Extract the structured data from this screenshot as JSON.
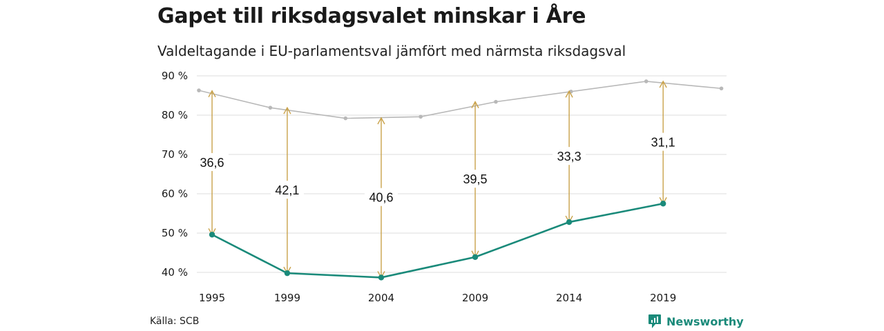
{
  "header": {
    "title": "Gapet till riksdagsvalet minskar i Åre",
    "subtitle": "Valdeltagande i EU-parlamentsval jämfört med närmsta riksdagsval"
  },
  "footer": {
    "source": "Källa: SCB",
    "brand": "Newsworthy"
  },
  "colors": {
    "eu_line": "#1a8a7a",
    "riksdag_line": "#b8b8b8",
    "gap_arrow": "#c9a24a",
    "grid": "#dcdcdc",
    "brand": "#1a8a7a"
  },
  "chart_data": {
    "type": "line",
    "title": "Gapet till riksdagsvalet minskar i Åre",
    "subtitle": "Valdeltagande i EU-parlamentsval jämfört med närmsta riksdagsval",
    "xlabel": "",
    "ylabel": "",
    "ylim": [
      37,
      90
    ],
    "y_ticks": [
      "90 %",
      "80 %",
      "70 %",
      "60 %",
      "50 %",
      "40 %"
    ],
    "y_tick_values": [
      90,
      80,
      70,
      60,
      50,
      40
    ],
    "x_ticks": [
      "1995",
      "1999",
      "2004",
      "2009",
      "2014",
      "2019"
    ],
    "x_tick_values": [
      1995,
      1999,
      2004,
      2009,
      2014,
      2019
    ],
    "xlim": [
      1994.3,
      2022.3
    ],
    "grid": true,
    "legend": "none",
    "series": [
      {
        "x": [
          1994.3,
          1998.1,
          2002.1,
          2006.1,
          2010.1,
          2014.1,
          2018.1,
          2022.1
        ],
        "y": [
          86.3,
          81.9,
          79.2,
          79.6,
          83.4,
          86.0,
          88.6,
          86.8
        ]
      },
      {
        "x": [
          1995,
          1999,
          2004,
          2009,
          2014,
          2019
        ],
        "y": [
          49.6,
          39.8,
          38.7,
          43.9,
          52.8,
          57.5
        ]
      }
    ],
    "gaps": [
      {
        "x": 1995,
        "from": 49.6,
        "to": 86.2,
        "label": "36,6"
      },
      {
        "x": 1999,
        "from": 39.8,
        "to": 81.9,
        "label": "42,1"
      },
      {
        "x": 2004,
        "from": 38.7,
        "to": 79.3,
        "label": "40,6"
      },
      {
        "x": 2009,
        "from": 43.9,
        "to": 83.4,
        "label": "39,5"
      },
      {
        "x": 2014,
        "from": 52.8,
        "to": 86.1,
        "label": "33,3"
      },
      {
        "x": 2019,
        "from": 57.5,
        "to": 88.6,
        "label": "31,1"
      }
    ]
  }
}
